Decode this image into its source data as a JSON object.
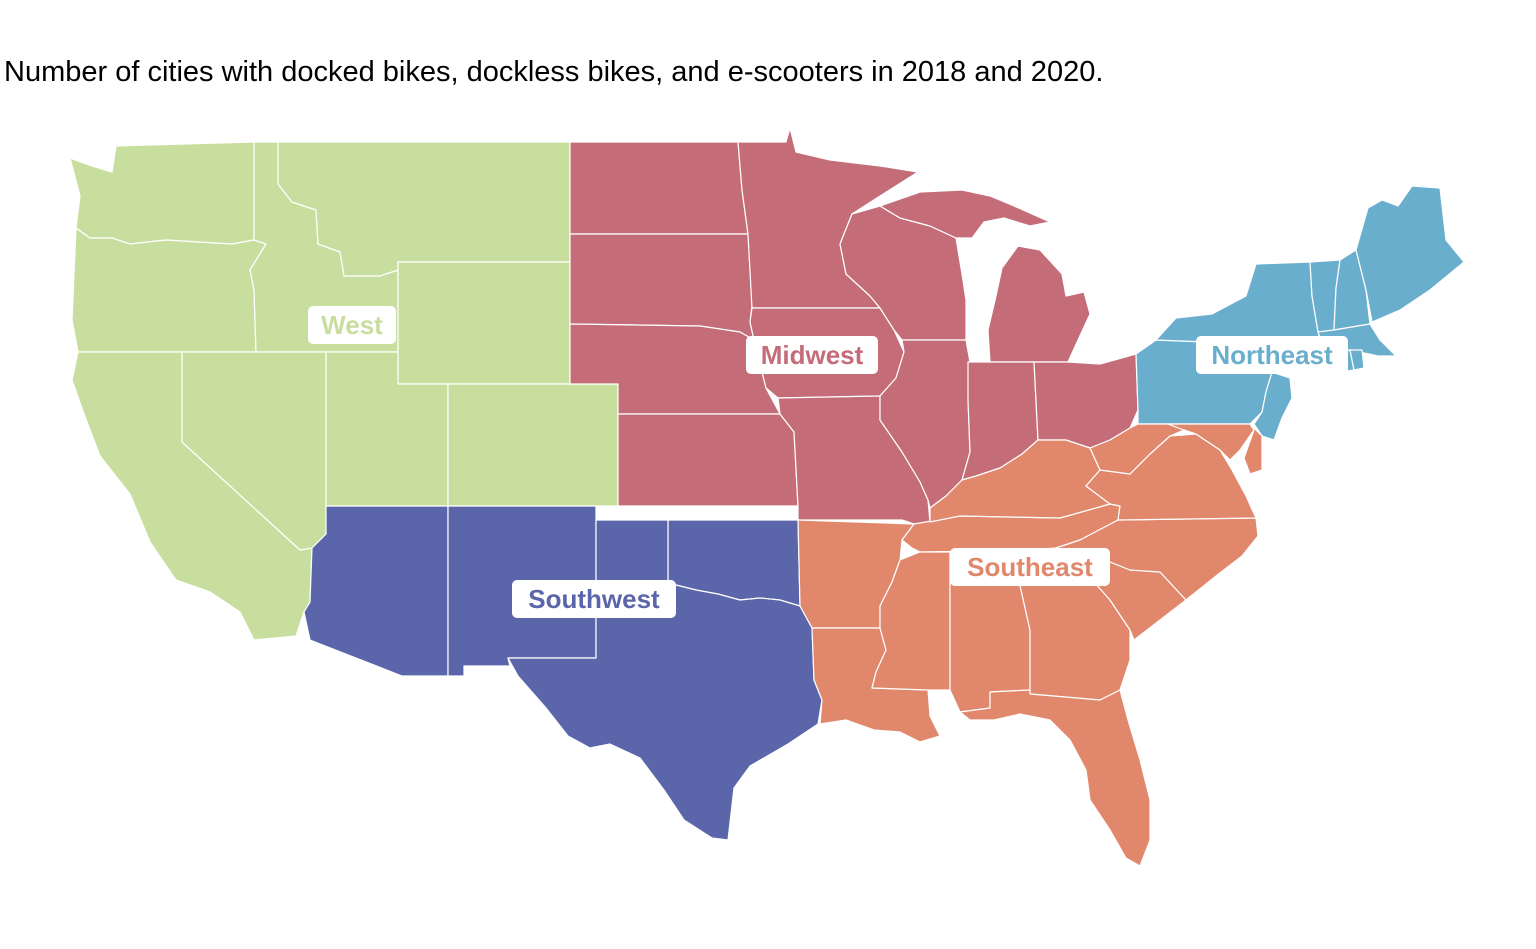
{
  "title": "Number of cities with docked bikes, dockless bikes, and e-scooters in 2018 and 2020.",
  "regions": [
    {
      "id": "west",
      "label": "West",
      "color": "#c8de9e"
    },
    {
      "id": "midwest",
      "label": "Midwest",
      "color": "#c46c78"
    },
    {
      "id": "northeast",
      "label": "Northeast",
      "color": "#6aaecd"
    },
    {
      "id": "southwest",
      "label": "Southwest",
      "color": "#5b66aa"
    },
    {
      "id": "southeast",
      "label": "Southeast",
      "color": "#e1876c"
    }
  ]
}
